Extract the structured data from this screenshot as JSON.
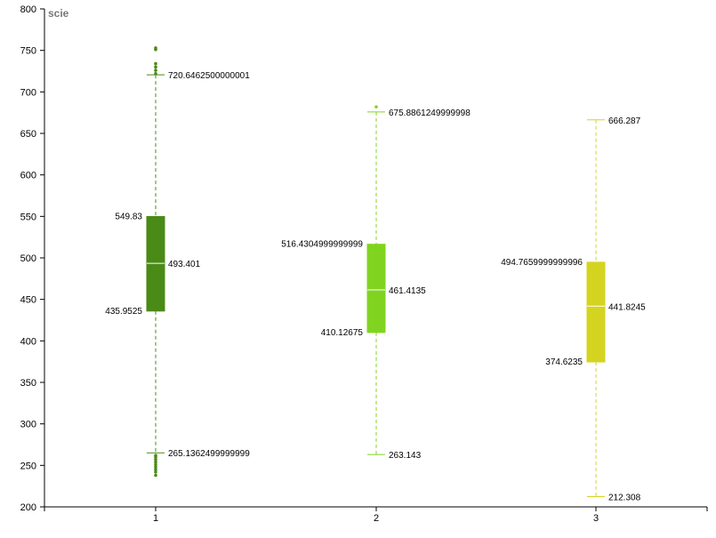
{
  "chart_data": {
    "type": "boxplot",
    "ylabel": "scie",
    "ylim": [
      200,
      800
    ],
    "yticks": [
      200,
      250,
      300,
      350,
      400,
      450,
      500,
      550,
      600,
      650,
      700,
      750,
      800
    ],
    "categories": [
      "1",
      "2",
      "3"
    ],
    "boxes": [
      {
        "category": "1",
        "color": "#4a8a16",
        "whisker_low": 265.1362499999999,
        "q1": 435.9525,
        "median": 493.401,
        "q3": 549.83,
        "whisker_high": 720.6462500000001,
        "labels": {
          "whisker_low": "265.1362499999999",
          "q1": "435.9525",
          "median": "493.401",
          "q3": "549.83",
          "whisker_high": "720.6462500000001"
        },
        "outliers": [
          238,
          242,
          245,
          248,
          251,
          254,
          257,
          260,
          262,
          722,
          726,
          730,
          734,
          751,
          753
        ]
      },
      {
        "category": "2",
        "color": "#80d41f",
        "whisker_low": 263.143,
        "q1": 410.12675,
        "median": 461.4135,
        "q3": 516.4304999999999,
        "whisker_high": 675.8861249999998,
        "labels": {
          "whisker_low": "263.143",
          "q1": "410.12675",
          "median": "461.4135",
          "q3": "516.4304999999999",
          "whisker_high": "675.8861249999998"
        },
        "outliers": [
          682
        ]
      },
      {
        "category": "3",
        "color": "#d4d420",
        "whisker_low": 212.308,
        "q1": 374.6235,
        "median": 441.8245,
        "q3": 494.7659999999996,
        "whisker_high": 666.287,
        "labels": {
          "whisker_low": "212.308",
          "q1": "374.6235",
          "median": "441.8245",
          "q3": "494.7659999999996",
          "whisker_high": "666.287"
        },
        "outliers": []
      }
    ]
  }
}
